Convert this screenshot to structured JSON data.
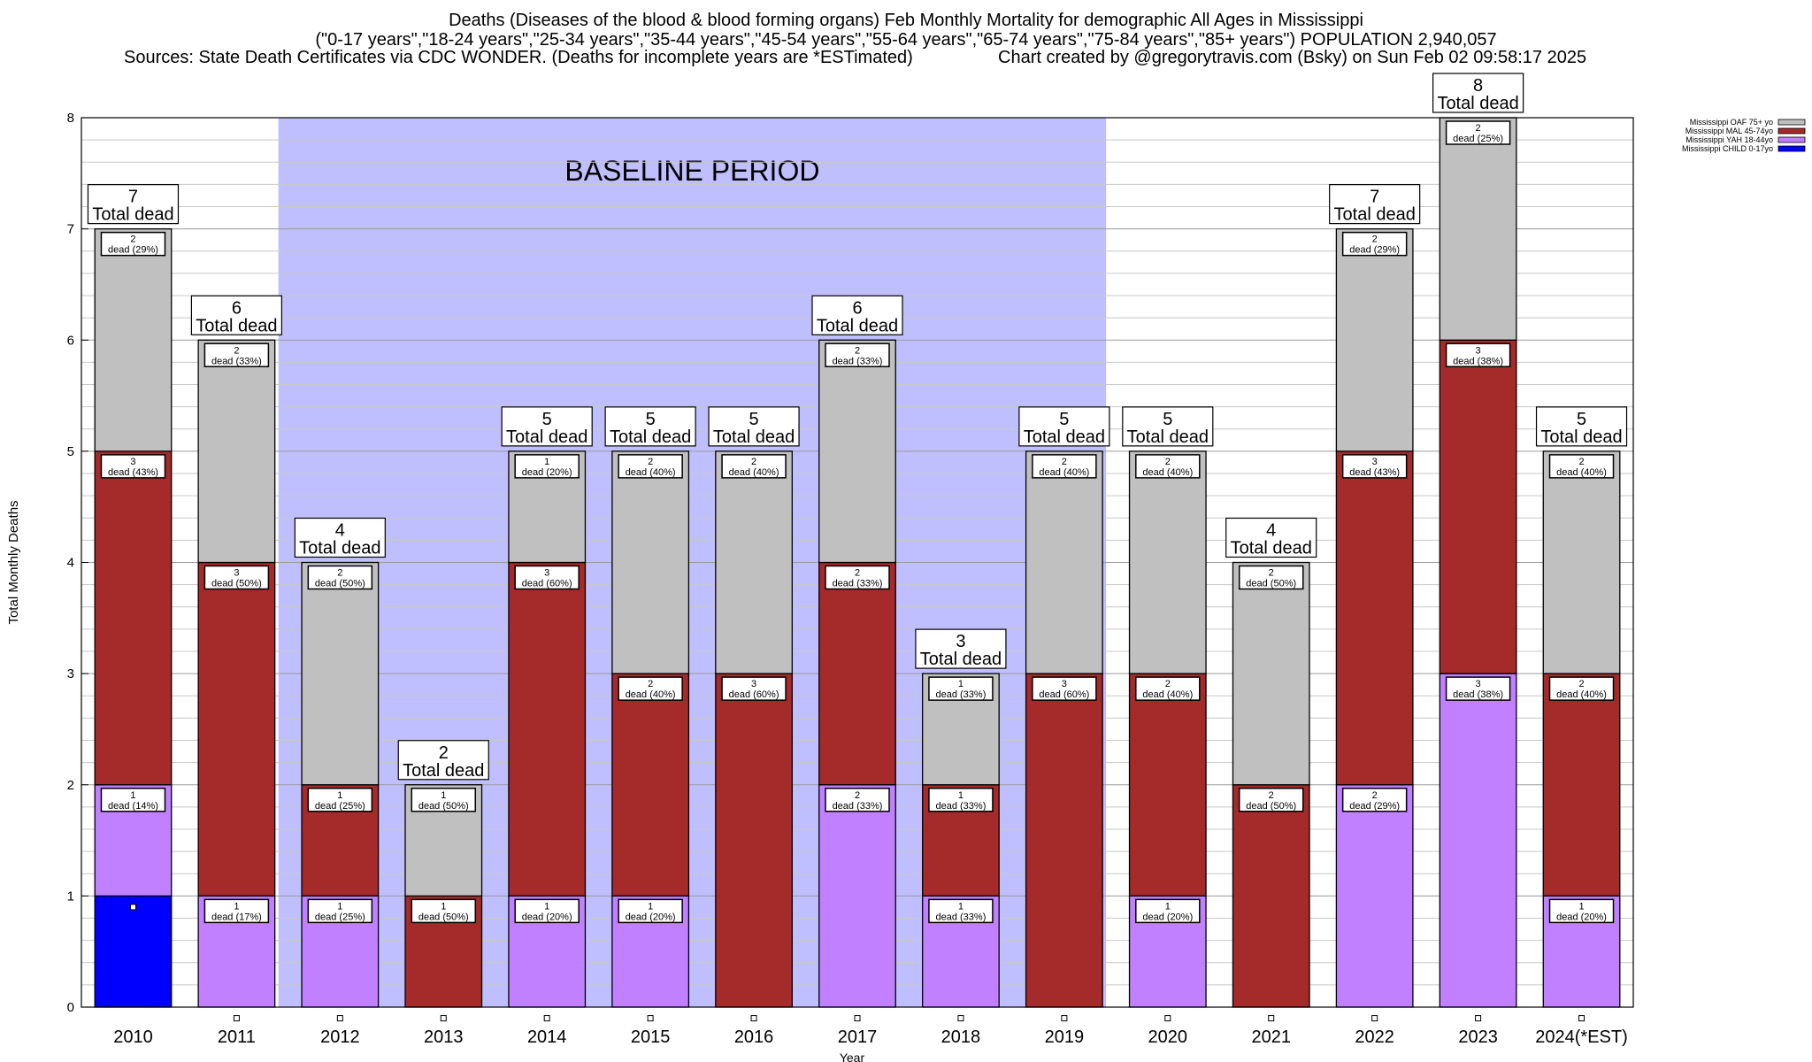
{
  "title": {
    "line1": "Deaths (Diseases of the blood & blood forming organs) Feb Monthly Mortality for demographic All Ages in Mississippi",
    "line2": "(\"0-17 years\",\"18-24 years\",\"25-34 years\",\"35-44 years\",\"45-54 years\",\"55-64 years\",\"65-74 years\",\"75-84 years\",\"85+ years\") POPULATION 2,940,057",
    "line3_left": "Sources: State Death Certificates via CDC WONDER. (Deaths for incomplete years are *ESTimated)",
    "line3_right": "Chart created by @gregorytravis.com (Bsky) on Sun Feb 02 09:58:17 2025"
  },
  "baseline_label": "BASELINE PERIOD",
  "total_label_suffix": "Total dead",
  "segment_label_word": "dead",
  "chart_data": {
    "type": "bar",
    "stacked": true,
    "xlabel": "Year",
    "ylabel": "Total Monthly Deaths",
    "ylim": [
      0,
      8
    ],
    "yticks": [
      0,
      1,
      2,
      3,
      4,
      5,
      6,
      7,
      8
    ],
    "categories": [
      "2010",
      "2011",
      "2012",
      "2013",
      "2014",
      "2015",
      "2016",
      "2017",
      "2018",
      "2019",
      "2020",
      "2021",
      "2022",
      "2023",
      "2024(*EST)"
    ],
    "baseline_period": [
      "2012",
      "2019"
    ],
    "grid": true,
    "legend_position": "top-right",
    "series": [
      {
        "name": "Mississippi CHILD 0-17yo",
        "color": "#0000ff",
        "values": [
          1,
          0,
          0,
          0,
          0,
          0,
          0,
          0,
          0,
          0,
          0,
          0,
          0,
          0,
          0
        ]
      },
      {
        "name": "Mississippi YAH 18-44yo",
        "color": "#c080ff",
        "values": [
          1,
          1,
          1,
          0,
          1,
          1,
          0,
          2,
          1,
          0,
          1,
          0,
          2,
          3,
          1
        ]
      },
      {
        "name": "Mississippi MAL 45-74yo",
        "color": "#a52a2a",
        "values": [
          3,
          3,
          1,
          1,
          3,
          2,
          3,
          2,
          1,
          3,
          2,
          2,
          3,
          3,
          2
        ]
      },
      {
        "name": "Mississippi OAF 75+ yo",
        "color": "#c0c0c0",
        "values": [
          2,
          2,
          2,
          1,
          1,
          2,
          2,
          2,
          1,
          2,
          2,
          2,
          2,
          2,
          2
        ]
      }
    ],
    "totals": [
      7,
      6,
      4,
      2,
      5,
      5,
      5,
      6,
      3,
      5,
      5,
      4,
      7,
      8,
      5
    ],
    "segment_labels": [
      [
        "",
        "1 dead (14%)",
        "3 dead (43%)",
        "2 dead (29%)"
      ],
      [
        "",
        "1 dead (17%)",
        "3 dead (50%)",
        "2 dead (33%)"
      ],
      [
        "",
        "1 dead (25%)",
        "1 dead (25%)",
        "2 dead (50%)"
      ],
      [
        "",
        "",
        "1 dead (50%)",
        "1 dead (50%)"
      ],
      [
        "",
        "1 dead (20%)",
        "3 dead (60%)",
        "1 dead (20%)"
      ],
      [
        "",
        "1 dead (20%)",
        "2 dead (40%)",
        "2 dead (40%)"
      ],
      [
        "",
        "",
        "3 dead (60%)",
        "2 dead (40%)"
      ],
      [
        "",
        "2 dead (33%)",
        "2 dead (33%)",
        "2 dead (33%)"
      ],
      [
        "",
        "1 dead (33%)",
        "1 dead (33%)",
        "1 dead (33%)"
      ],
      [
        "",
        "",
        "3 dead (60%)",
        "2 dead (40%)"
      ],
      [
        "",
        "1 dead (20%)",
        "2 dead (40%)",
        "2 dead (40%)"
      ],
      [
        "",
        "",
        "2 dead (50%)",
        "2 dead (50%)"
      ],
      [
        "",
        "2 dead (29%)",
        "3 dead (43%)",
        "2 dead (29%)"
      ],
      [
        "",
        "3 dead (38%)",
        "3 dead (38%)",
        "2 dead (25%)"
      ],
      [
        "",
        "1 dead (20%)",
        "2 dead (40%)",
        "2 dead (40%)"
      ]
    ]
  },
  "legend_order": [
    3,
    2,
    1,
    0
  ]
}
